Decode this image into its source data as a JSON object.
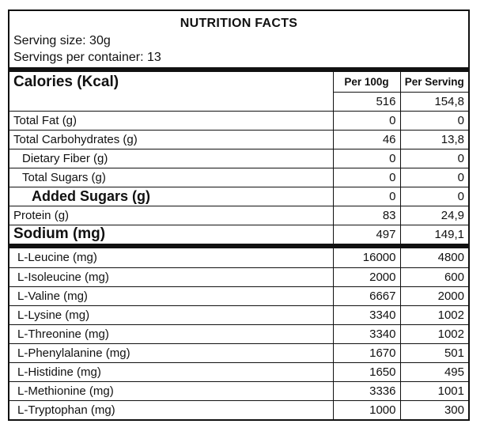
{
  "header": {
    "title": "NUTRITION FACTS",
    "serving_size": "Serving size: 30g",
    "servings_per_container": "Servings per container: 13"
  },
  "columns": {
    "per_100g": "Per 100g",
    "per_serving": "Per Serving"
  },
  "calories": {
    "label": "Calories (Kcal)",
    "per_100g": "516",
    "per_serving": "154,8"
  },
  "rows": [
    {
      "label": "Total Fat (g)",
      "per_100g": "0",
      "per_serving": "0"
    },
    {
      "label": "Total Carbohydrates (g)",
      "per_100g": "46",
      "per_serving": "13,8"
    },
    {
      "label": "Dietary Fiber (g)",
      "per_100g": "0",
      "per_serving": "0"
    },
    {
      "label": "Total Sugars (g)",
      "per_100g": "0",
      "per_serving": "0"
    },
    {
      "label": "Added Sugars (g)",
      "per_100g": "0",
      "per_serving": "0"
    },
    {
      "label": "Protein (g)",
      "per_100g": "83",
      "per_serving": "24,9"
    },
    {
      "label": "Sodium (mg)",
      "per_100g": "497",
      "per_serving": "149,1"
    }
  ],
  "amino_acids": [
    {
      "label": "L-Leucine (mg)",
      "per_100g": "16000",
      "per_serving": "4800"
    },
    {
      "label": "L-Isoleucine (mg)",
      "per_100g": "2000",
      "per_serving": "600"
    },
    {
      "label": "L-Valine (mg)",
      "per_100g": "6667",
      "per_serving": "2000"
    },
    {
      "label": "L-Lysine (mg)",
      "per_100g": "3340",
      "per_serving": "1002"
    },
    {
      "label": "L-Threonine (mg)",
      "per_100g": "3340",
      "per_serving": "1002"
    },
    {
      "label": "L-Phenylalanine (mg)",
      "per_100g": "1670",
      "per_serving": "501"
    },
    {
      "label": "L-Histidine (mg)",
      "per_100g": "1650",
      "per_serving": "495"
    },
    {
      "label": "L-Methionine (mg)",
      "per_100g": "3336",
      "per_serving": "1001"
    },
    {
      "label": "L-Tryptophan (mg)",
      "per_100g": "1000",
      "per_serving": "300"
    }
  ],
  "colors": {
    "text": "#111111",
    "border": "#111111",
    "background": "#ffffff"
  }
}
